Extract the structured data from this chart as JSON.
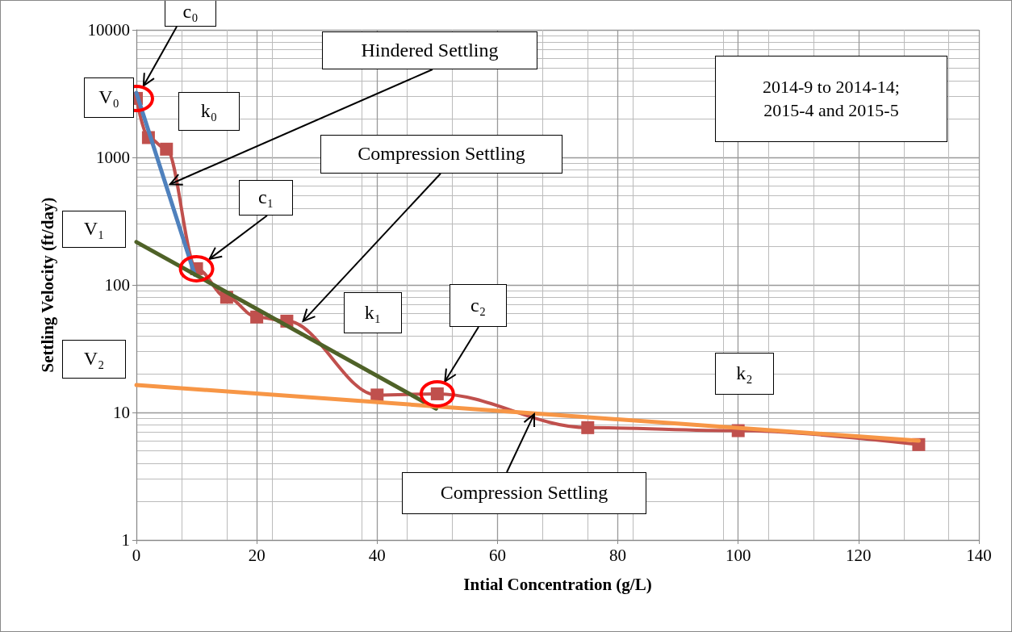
{
  "chart_data": {
    "type": "line",
    "xlabel": "Intial Concentration (g/L)",
    "ylabel": "Settling Velocity (ft/day)",
    "log": "y",
    "grid": true,
    "xlim": [
      0,
      140
    ],
    "xticks": [
      0,
      20,
      40,
      60,
      80,
      100,
      120,
      140
    ],
    "ylim": [
      1,
      10000
    ],
    "yticks": [
      1,
      10,
      100,
      1000,
      10000
    ],
    "x": [
      0,
      2,
      5,
      10,
      15,
      20,
      25,
      40,
      50,
      75,
      100,
      130
    ],
    "series": [
      {
        "color": "#c0504d",
        "marker": "square",
        "values": [
          2900,
          1430,
          1160,
          134,
          80,
          56,
          52,
          13.7,
          14,
          7.6,
          7.2,
          5.6
        ]
      },
      {
        "color": "#4f81bd",
        "marker": "none",
        "x": [
          0,
          9.7
        ],
        "values": [
          3200,
          120
        ]
      },
      {
        "color": "#4f6228",
        "marker": "none",
        "x": [
          0,
          49.8
        ],
        "values": [
          217,
          10.7
        ]
      },
      {
        "color": "#f79646",
        "marker": "none",
        "x": [
          0,
          130
        ],
        "values": [
          16.4,
          6
        ]
      }
    ],
    "annotations": [
      "c₀",
      "V₀",
      "k₀",
      {
        "text": "Hindered Settling",
        "x": 5.6,
        "y": 616
      },
      {
        "text": "Compression Settling",
        "x": 27.7,
        "y": 52
      },
      "c₁",
      "V₁",
      "k₁",
      "c₂",
      "V₂",
      "k₂",
      {
        "text": "Compression Settling",
        "x": 66.1,
        "y": 9.7
      },
      "2014-9 to 2014-14; 2015-4 and 2015-5"
    ]
  }
}
